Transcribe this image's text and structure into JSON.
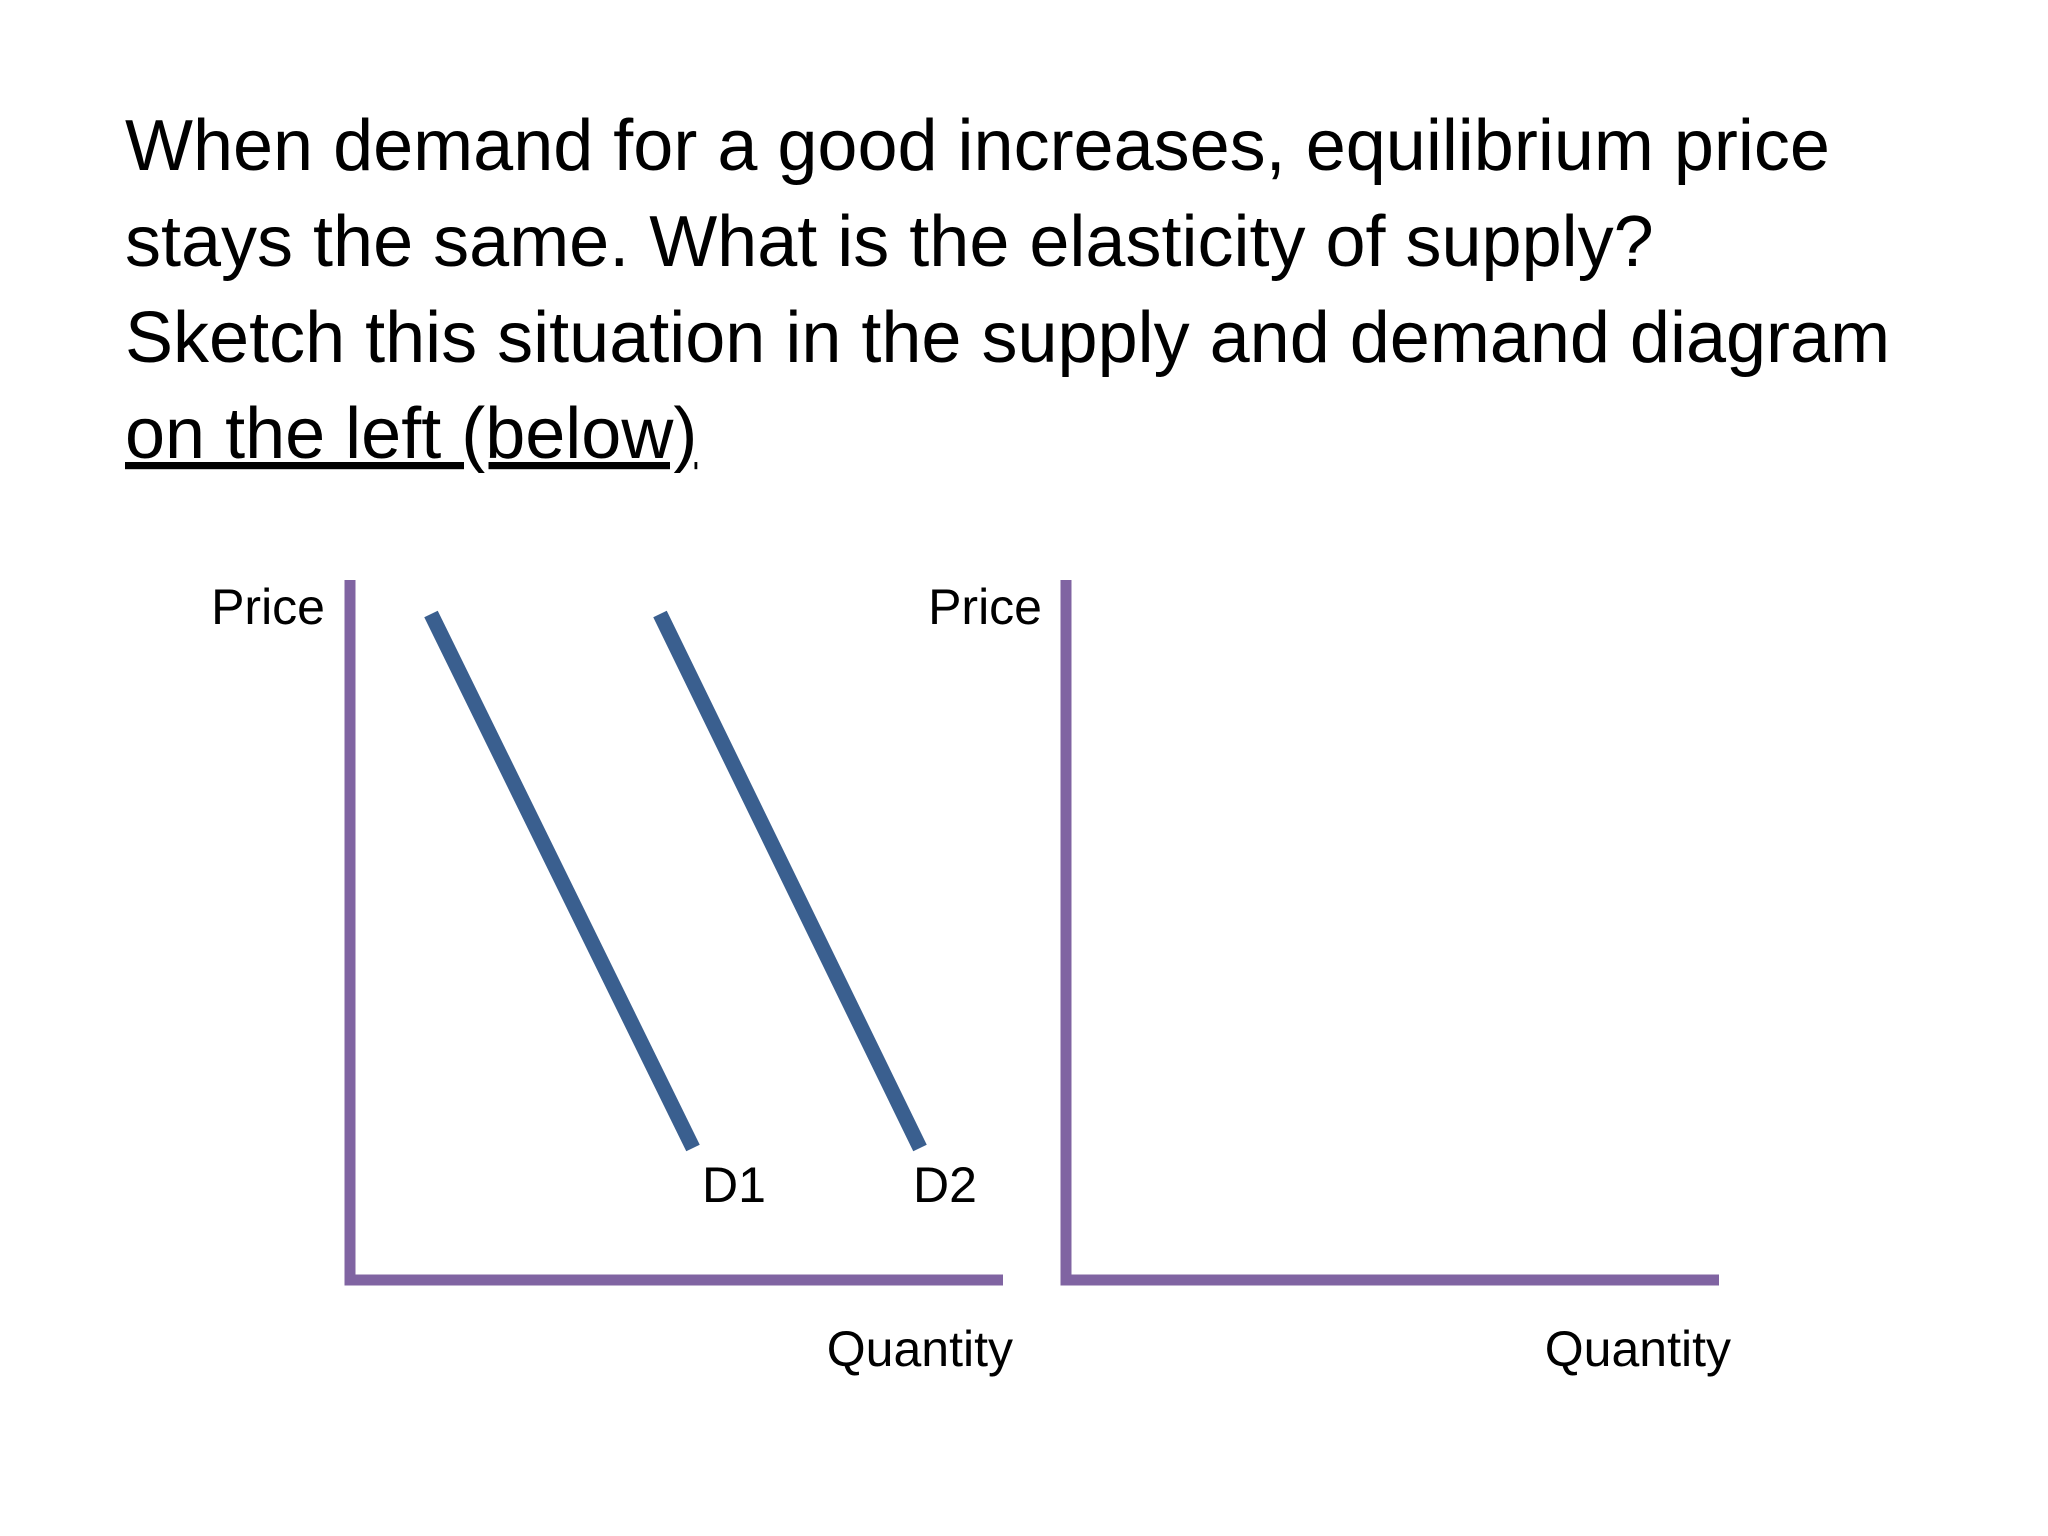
{
  "question": {
    "lines": [
      "When demand for a good increases, equilibrium price",
      "stays the same. What is the elasticity of supply?",
      "Sketch this situation in the supply and demand diagram"
    ],
    "underlined": "on the left (below)"
  },
  "diagrams": [
    {
      "y_label": "Price",
      "x_label": "Quantity",
      "curves": [
        {
          "label": "D1"
        },
        {
          "label": "D2"
        }
      ]
    },
    {
      "y_label": "Price",
      "x_label": "Quantity"
    }
  ]
}
